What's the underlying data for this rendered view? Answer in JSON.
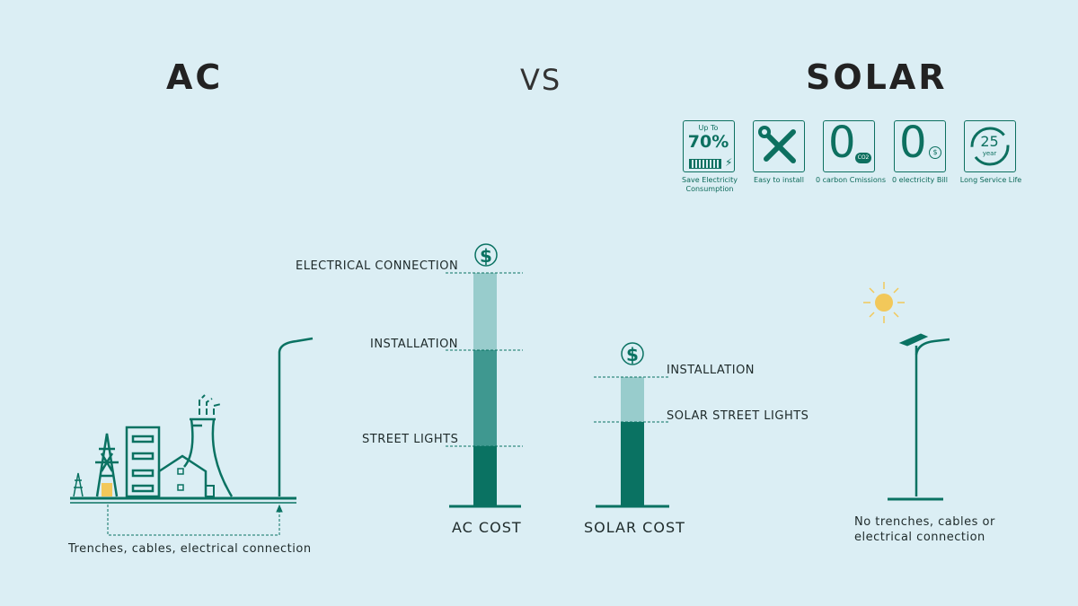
{
  "header": {
    "left_title": "AC",
    "vs": "VS",
    "right_title": "SOLAR"
  },
  "features": [
    {
      "icon": "battery-70-icon",
      "top": "Up To",
      "value": "70%",
      "label": "Save Electricity Consumption"
    },
    {
      "icon": "tools-icon",
      "label": "Easy to install"
    },
    {
      "icon": "zero-co2-icon",
      "value": "0",
      "sub": "CO2",
      "label": "0 carbon Cmissions"
    },
    {
      "icon": "zero-bill-icon",
      "value": "0",
      "label": "0 electricity Bill"
    },
    {
      "icon": "25-year-icon",
      "value": "25",
      "sub": "year",
      "label": "Long Service Life"
    }
  ],
  "ac": {
    "caption": "Trenches, cables, electrical connection",
    "cost_label": "AC COST",
    "segments": [
      "STREET LIGHTS",
      "INSTALLATION",
      "ELECTRICAL CONNECTION"
    ]
  },
  "solar": {
    "caption_line1": "No trenches, cables or",
    "caption_line2": "electrical connection",
    "cost_label": "SOLAR COST",
    "segments": [
      "SOLAR STREET LIGHTS",
      "INSTALLATION"
    ]
  },
  "colors": {
    "background": "#dbeef4",
    "dark_green": "#0a7262",
    "mid_green": "#3f9890",
    "light_green": "#98cccc",
    "sun": "#f2c85a"
  }
}
